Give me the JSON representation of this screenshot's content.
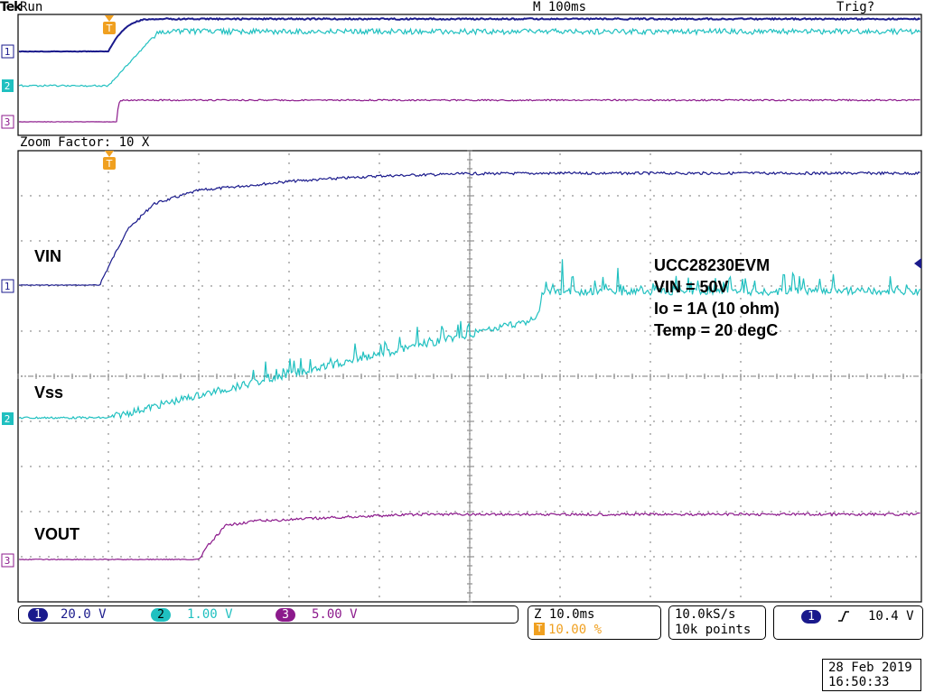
{
  "header": {
    "brand": "Tek",
    "run_state": "Run",
    "timebase": "M 100ms",
    "trigger_state": "Trig?"
  },
  "zoom": {
    "factor_label": "Zoom Factor: 10 X"
  },
  "trigger_marker": "T",
  "channel_markers": [
    "1",
    "2",
    "3"
  ],
  "colors": {
    "ch1": "#1a1a8c",
    "ch2": "#20c0c0",
    "ch3": "#8c1a8c",
    "trigger": "#f0a020",
    "grid": "#555555"
  },
  "labels": {
    "vin": "VIN",
    "vss": "Vss",
    "vout": "VOUT"
  },
  "annotation": {
    "line1": "UCC28230EVM",
    "line2": "VIN = 50V",
    "line3": "Io = 1A (10 ohm)",
    "line4": "Temp = 20 degC"
  },
  "status": {
    "ch1_scale": "20.0 V",
    "ch2_scale": "1.00 V",
    "ch3_scale": "5.00 V",
    "zoom_time": "Z 10.0ms",
    "zoom_pos": "10.00 %",
    "sample_rate": "10.0kS/s",
    "record_length": "10k points",
    "trig_source": "1",
    "trig_level": "10.4 V",
    "date": "28 Feb  2019",
    "time": "16:50:33"
  },
  "chart_data": {
    "type": "line",
    "x_unit": "ms",
    "xlim": [
      -10,
      90
    ],
    "series": [
      {
        "name": "VIN",
        "channel": 1,
        "x": [
          -10,
          -1,
          0,
          2,
          5,
          10,
          20,
          30,
          40,
          50,
          60,
          70,
          80,
          90
        ],
        "y": [
          0,
          0,
          0.4,
          1.2,
          1.8,
          2.1,
          2.3,
          2.42,
          2.47,
          2.48,
          2.48,
          2.48,
          2.48,
          2.48
        ]
      },
      {
        "name": "Vss",
        "channel": 2,
        "x": [
          -10,
          0,
          1,
          10,
          20,
          30,
          40,
          47.5,
          48,
          49,
          60,
          70,
          80,
          90
        ],
        "y": [
          0,
          0,
          0.05,
          0.5,
          0.95,
          1.4,
          1.85,
          2.2,
          2.8,
          2.78,
          2.8,
          2.78,
          2.82,
          2.8
        ]
      },
      {
        "name": "VOUT",
        "channel": 3,
        "x": [
          -10,
          10,
          11,
          13,
          16,
          20,
          25,
          30,
          35,
          40,
          50,
          60,
          70,
          80,
          90
        ],
        "y": [
          0,
          0,
          0.3,
          0.75,
          0.85,
          0.88,
          0.93,
          0.97,
          1.0,
          1.0,
          1.0,
          1.0,
          1.0,
          1.0,
          1.0
        ]
      }
    ]
  }
}
